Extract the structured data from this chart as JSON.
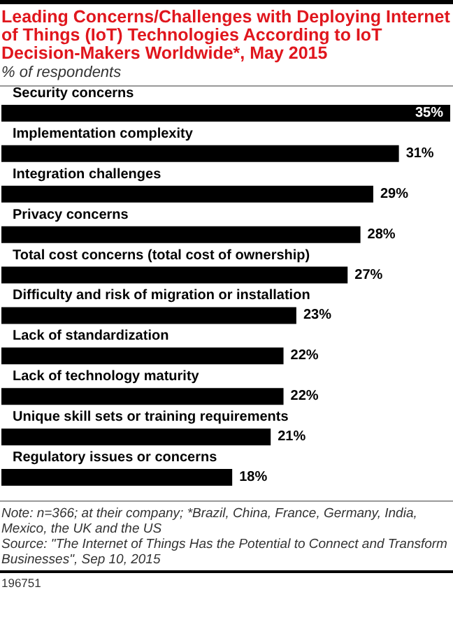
{
  "chart_data": {
    "type": "bar",
    "orientation": "horizontal",
    "title": "Leading Concerns/Challenges with Deploying Internet of Things (IoT) Technologies According to IoT Decision-Makers Worldwide*, May 2015",
    "subtitle": "% of respondents",
    "categories": [
      "Security concerns",
      "Implementation complexity",
      "Integration challenges",
      "Privacy concerns",
      "Total cost concerns (total cost of ownership)",
      "Difficulty and risk of migration or installation",
      "Lack of standardization",
      "Lack of technology maturity",
      "Unique skill sets or training requirements",
      "Regulatory issues or concerns"
    ],
    "values": [
      35,
      31,
      29,
      28,
      27,
      23,
      22,
      22,
      21,
      18
    ],
    "value_labels": [
      "35%",
      "31%",
      "29%",
      "28%",
      "27%",
      "23%",
      "22%",
      "22%",
      "21%",
      "18%"
    ],
    "color": "#000000",
    "xlim": [
      0,
      35
    ],
    "grid": false,
    "annotations": [
      "Note: n=366; at their company; *Brazil, China, France, Germany, India, Mexico, the UK and the US",
      "Source: \"The Internet of Things Has the Potential to Connect and Transform Businesses\", Sep 10, 2015",
      "196751"
    ]
  }
}
